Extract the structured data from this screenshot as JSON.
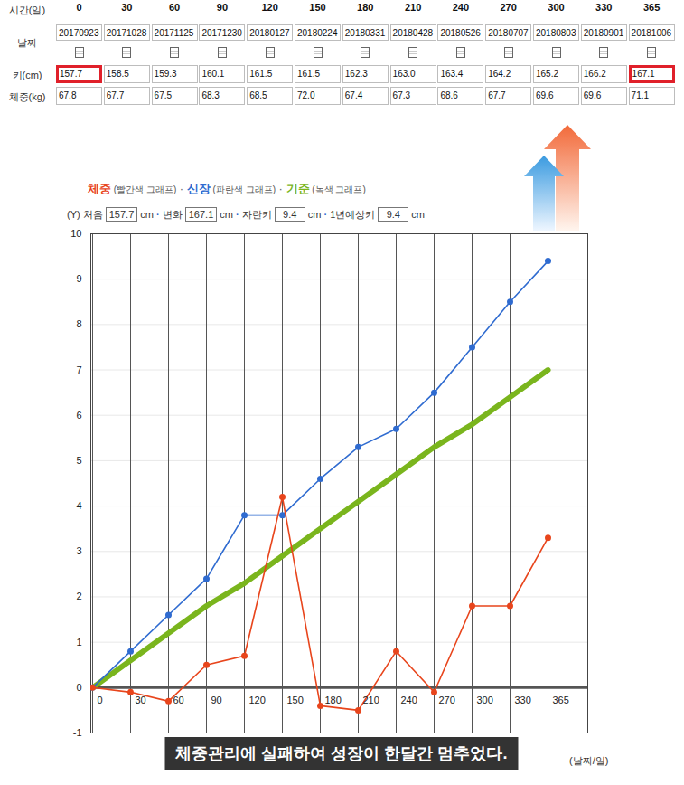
{
  "table": {
    "row_labels": [
      "시간(일)",
      "날짜",
      "키(cm)",
      "체중(kg)"
    ],
    "rows": [
      [
        "0",
        "30",
        "60",
        "90",
        "120",
        "150",
        "180",
        "210",
        "240",
        "270",
        "300",
        "330",
        "365"
      ],
      [
        "20170923",
        "20171028",
        "20171125",
        "20171230",
        "20180127",
        "20180224",
        "20180331",
        "20180428",
        "20180526",
        "20180707",
        "20180803",
        "20180901",
        "20181006"
      ],
      [
        "157.7",
        "158.5",
        "159.3",
        "160.1",
        "161.5",
        "161.5",
        "162.3",
        "163.0",
        "163.4",
        "164.2",
        "165.2",
        "166.2",
        "167.1"
      ],
      [
        "67.8",
        "67.7",
        "67.5",
        "68.3",
        "68.5",
        "72.0",
        "67.4",
        "67.3",
        "68.6",
        "67.7",
        "69.6",
        "69.6",
        "71.1"
      ]
    ]
  },
  "header": {
    "separator": "·",
    "inputs": [
      {
        "label": "처음",
        "value": 157.7,
        "unit": "cm"
      },
      {
        "label": "변화",
        "value": 167.1,
        "unit": "cm"
      },
      {
        "label": "자란키",
        "value": 9.4,
        "unit": "cm"
      },
      {
        "label": "1년예상키",
        "value": 9.4,
        "unit": "cm"
      }
    ]
  },
  "chart_data": {
    "type": "line",
    "y_label": "(Y)",
    "x_label": "(날짜/일)",
    "caption": "체중관리에 실패하여 성장이 한달간 멈추었다.",
    "categories": [
      "0",
      "30",
      "60",
      "90",
      "120",
      "150",
      "180",
      "210",
      "240",
      "270",
      "300",
      "330",
      "365"
    ],
    "series": [
      {
        "name": "체중",
        "description": "(빨간색 그래프)",
        "color": "#e8451c",
        "marker": "circle",
        "values": [
          0,
          -0.1,
          -0.3,
          0.5,
          0.7,
          4.2,
          -0.4,
          -0.5,
          0.8,
          -0.1,
          1.8,
          1.8,
          3.3
        ]
      },
      {
        "name": "신장",
        "description": "(파란색 그래프)",
        "color": "#2f6bd0",
        "marker": "circle",
        "values": [
          0,
          0.8,
          1.6,
          2.4,
          3.8,
          3.8,
          4.6,
          5.3,
          5.7,
          6.5,
          7.5,
          8.5,
          9.4
        ]
      },
      {
        "name": "기준",
        "description": "(녹색 그래프)",
        "color": "#7ab51d",
        "line_style": "solid",
        "values": [
          0,
          0.6,
          1.2,
          1.8,
          2.3,
          2.9,
          3.5,
          4.1,
          4.7,
          5.3,
          5.8,
          6.4,
          7.0
        ]
      }
    ],
    "ylim": [
      -1,
      10
    ],
    "yticks": [
      -1,
      0,
      1,
      2,
      3,
      4,
      5,
      6,
      7,
      8,
      9,
      10
    ],
    "grid": true
  }
}
